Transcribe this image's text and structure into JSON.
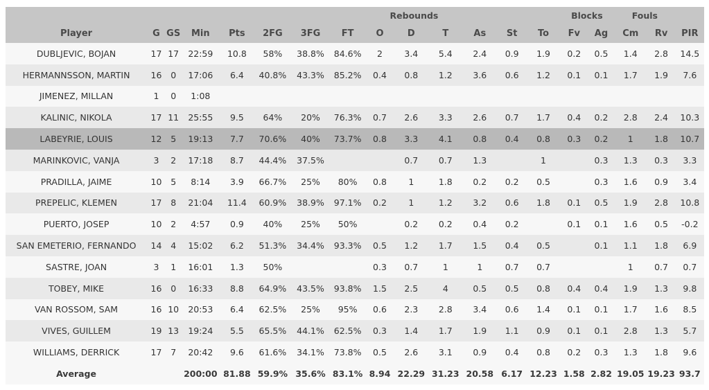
{
  "groups": {
    "rebounds": "Rebounds",
    "blocks": "Blocks",
    "fouls": "Fouls"
  },
  "columns": [
    "Player",
    "G",
    "GS",
    "Min",
    "Pts",
    "2FG",
    "3FG",
    "FT",
    "O",
    "D",
    "T",
    "As",
    "St",
    "To",
    "Fv",
    "Ag",
    "Cm",
    "Rv",
    "PIR"
  ],
  "highlight_color": "#b9b9b9",
  "rows": [
    [
      "DUBLJEVIC, BOJAN",
      "17",
      "17",
      "22:59",
      "10.8",
      "58%",
      "38.8%",
      "84.6%",
      "2",
      "3.4",
      "5.4",
      "2.4",
      "0.9",
      "1.9",
      "0.2",
      "0.5",
      "1.4",
      "2.8",
      "14.5"
    ],
    [
      "HERMANNSSON, MARTIN",
      "16",
      "0",
      "17:06",
      "6.4",
      "40.8%",
      "43.3%",
      "85.2%",
      "0.4",
      "0.8",
      "1.2",
      "3.6",
      "0.6",
      "1.2",
      "0.1",
      "0.1",
      "1.7",
      "1.9",
      "7.6"
    ],
    [
      "JIMENEZ, MILLAN",
      "1",
      "0",
      "1:08",
      "",
      "",
      "",
      "",
      "",
      "",
      "",
      "",
      "",
      "",
      "",
      "",
      "",
      "",
      ""
    ],
    [
      "KALINIC, NIKOLA",
      "17",
      "11",
      "25:55",
      "9.5",
      "64%",
      "20%",
      "76.3%",
      "0.7",
      "2.6",
      "3.3",
      "2.6",
      "0.7",
      "1.7",
      "0.4",
      "0.2",
      "2.8",
      "2.4",
      "10.3"
    ],
    [
      "LABEYRIE, LOUIS",
      "12",
      "5",
      "19:13",
      "7.7",
      "70.6%",
      "40%",
      "73.7%",
      "0.8",
      "3.3",
      "4.1",
      "0.8",
      "0.4",
      "0.8",
      "0.3",
      "0.2",
      "1",
      "1.8",
      "10.7"
    ],
    [
      "MARINKOVIC, VANJA",
      "3",
      "2",
      "17:18",
      "8.7",
      "44.4%",
      "37.5%",
      "",
      "",
      "0.7",
      "0.7",
      "1.3",
      "",
      "1",
      "",
      "0.3",
      "1.3",
      "0.3",
      "3.3"
    ],
    [
      "PRADILLA, JAIME",
      "10",
      "5",
      "8:14",
      "3.9",
      "66.7%",
      "25%",
      "80%",
      "0.8",
      "1",
      "1.8",
      "0.2",
      "0.2",
      "0.5",
      "",
      "0.3",
      "1.6",
      "0.9",
      "3.4"
    ],
    [
      "PREPELIC, KLEMEN",
      "17",
      "8",
      "21:04",
      "11.4",
      "60.9%",
      "38.9%",
      "97.1%",
      "0.2",
      "1",
      "1.2",
      "3.2",
      "0.6",
      "1.8",
      "0.1",
      "0.5",
      "1.9",
      "2.8",
      "10.8"
    ],
    [
      "PUERTO, JOSEP",
      "10",
      "2",
      "4:57",
      "0.9",
      "40%",
      "25%",
      "50%",
      "",
      "0.2",
      "0.2",
      "0.4",
      "0.2",
      "",
      "0.1",
      "0.1",
      "1.6",
      "0.5",
      "-0.2"
    ],
    [
      "SAN EMETERIO, FERNANDO",
      "14",
      "4",
      "15:02",
      "6.2",
      "51.3%",
      "34.4%",
      "93.3%",
      "0.5",
      "1.2",
      "1.7",
      "1.5",
      "0.4",
      "0.5",
      "",
      "0.1",
      "1.1",
      "1.8",
      "6.9"
    ],
    [
      "SASTRE, JOAN",
      "3",
      "1",
      "16:01",
      "1.3",
      "50%",
      "",
      "",
      "0.3",
      "0.7",
      "1",
      "1",
      "0.7",
      "0.7",
      "",
      "",
      "1",
      "0.7",
      "0.7"
    ],
    [
      "TOBEY, MIKE",
      "16",
      "0",
      "16:33",
      "8.8",
      "64.9%",
      "43.5%",
      "93.8%",
      "1.5",
      "2.5",
      "4",
      "0.5",
      "0.5",
      "0.8",
      "0.4",
      "0.4",
      "1.9",
      "1.3",
      "9.8"
    ],
    [
      "VAN ROSSOM, SAM",
      "16",
      "10",
      "20:53",
      "6.4",
      "62.5%",
      "25%",
      "95%",
      "0.6",
      "2.3",
      "2.8",
      "3.4",
      "0.6",
      "1.4",
      "0.1",
      "0.1",
      "1.7",
      "1.6",
      "8.5"
    ],
    [
      "VIVES, GUILLEM",
      "19",
      "13",
      "19:24",
      "5.5",
      "65.5%",
      "44.1%",
      "62.5%",
      "0.3",
      "1.4",
      "1.7",
      "1.9",
      "1.1",
      "0.9",
      "0.1",
      "0.1",
      "2.8",
      "1.3",
      "5.7"
    ],
    [
      "WILLIAMS, DERRICK",
      "17",
      "7",
      "20:42",
      "9.6",
      "61.6%",
      "34.1%",
      "73.8%",
      "0.5",
      "2.6",
      "3.1",
      "0.9",
      "0.4",
      "0.8",
      "0.2",
      "0.3",
      "1.3",
      "1.8",
      "9.6"
    ]
  ],
  "average": [
    "Average",
    "",
    "",
    "200:00",
    "81.88",
    "59.9%",
    "35.6%",
    "83.1%",
    "8.94",
    "22.29",
    "31.23",
    "20.58",
    "6.17",
    "12.23",
    "1.58",
    "2.82",
    "19.05",
    "19.23",
    "93.7"
  ],
  "highlighted_row": 4
}
